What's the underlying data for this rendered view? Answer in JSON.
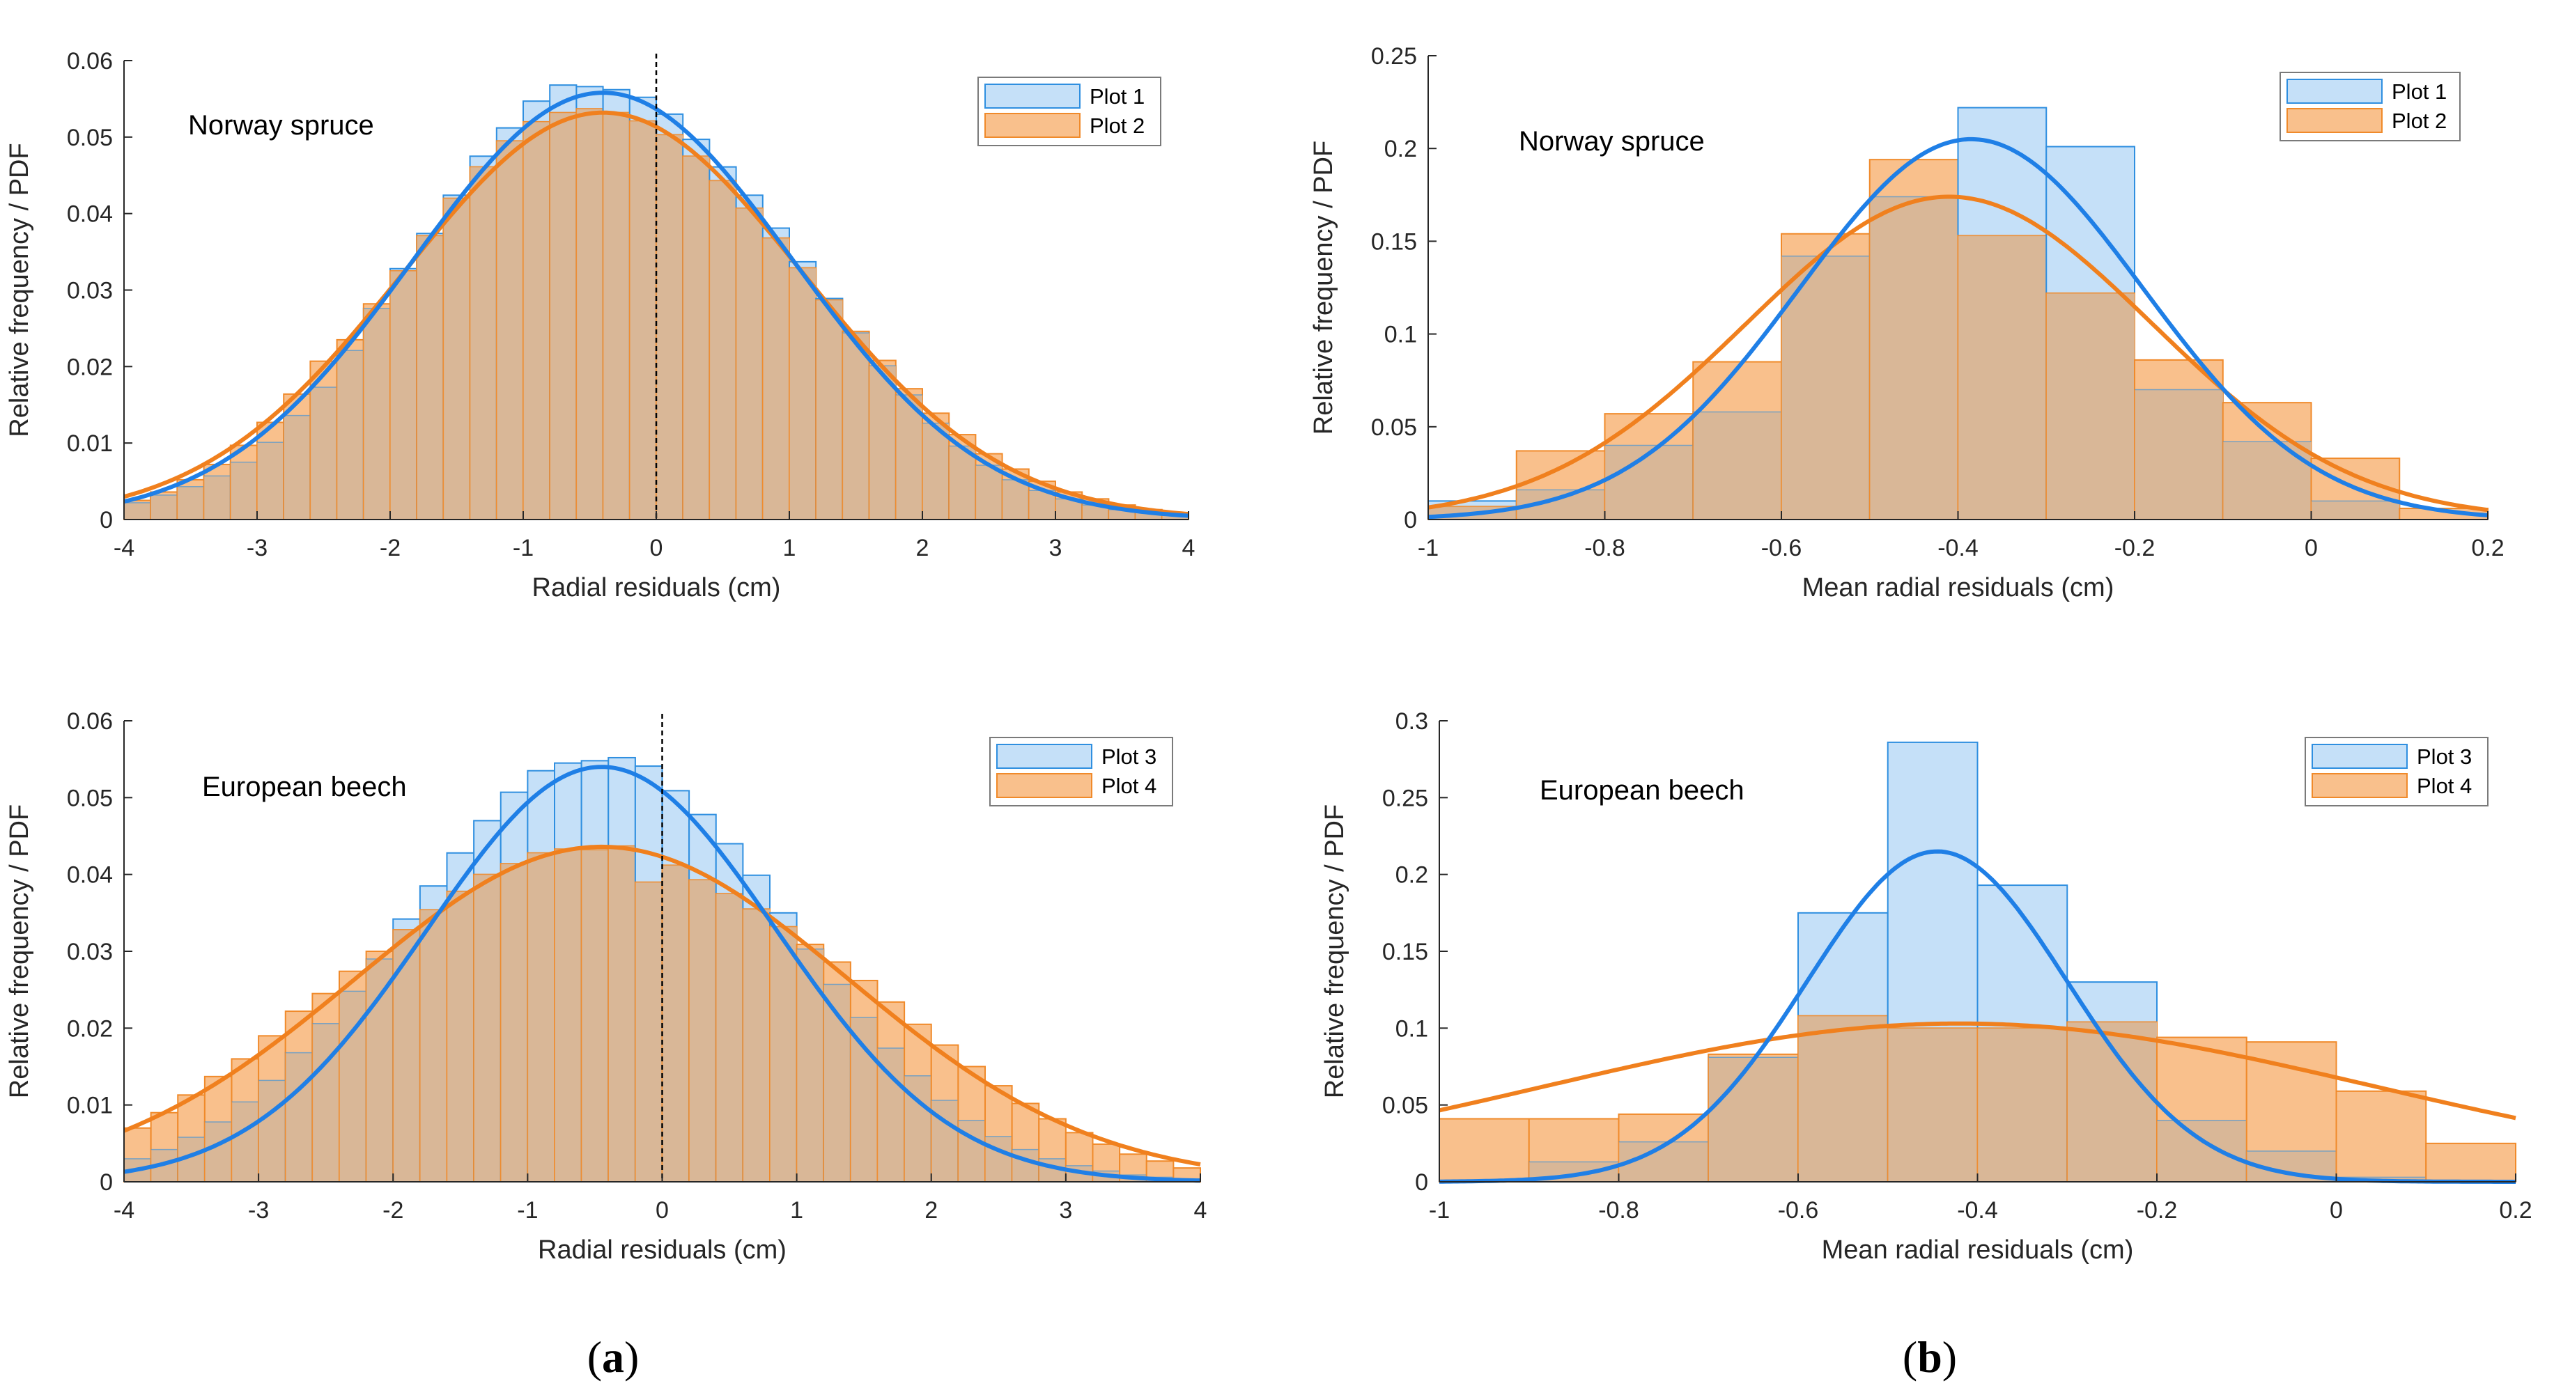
{
  "colors": {
    "blue_fill": "#c5e0f8",
    "blue_edge": "#2f8fe0",
    "blue_curve": "#1f7fe6",
    "orange_fill": "#f9c08c",
    "orange_edge": "#f08a2a",
    "orange_curve": "#f0801e",
    "overlap_fill": "#d9b797",
    "axis": "#262626"
  },
  "panel_labels": [
    {
      "open": "(",
      "letter": "a",
      "close": ")"
    },
    {
      "open": "(",
      "letter": "b",
      "close": ")"
    }
  ],
  "chart_data": [
    {
      "type": "bar",
      "annotation": "Norway spruce",
      "xlabel": "Radial residuals (cm)",
      "ylabel": "Relative frequency / PDF",
      "xlim": [
        -4,
        4
      ],
      "ylim": [
        0,
        0.06
      ],
      "xticks": [
        -4,
        -3,
        -2,
        -1,
        0,
        1,
        2,
        3,
        4
      ],
      "yticks": [
        0,
        0.01,
        0.02,
        0.03,
        0.04,
        0.05,
        0.06
      ],
      "ytick_labels": [
        "0",
        "0.01",
        "0.02",
        "0.03",
        "0.04",
        "0.05",
        "0.06"
      ],
      "zero_line": true,
      "legend_position": "top-right",
      "bin_width": 0.2,
      "bin_start": -4,
      "series": [
        {
          "name": "Plot 1",
          "color": "blue",
          "values": [
            0.0022,
            0.0032,
            0.0043,
            0.0057,
            0.0075,
            0.0101,
            0.0136,
            0.0173,
            0.0221,
            0.0276,
            0.0328,
            0.0374,
            0.0424,
            0.0475,
            0.0512,
            0.0547,
            0.0568,
            0.0566,
            0.0562,
            0.0552,
            0.053,
            0.0497,
            0.0461,
            0.0424,
            0.0381,
            0.0337,
            0.0289,
            0.0244,
            0.0201,
            0.0163,
            0.0126,
            0.0096,
            0.0071,
            0.0052,
            0.0038,
            0.0027,
            0.0019,
            0.0013,
            0.0009,
            0.0006
          ],
          "pdf": {
            "mu": -0.4,
            "sigma": 1.43,
            "peak": 0.0558
          }
        },
        {
          "name": "Plot 2",
          "color": "orange",
          "values": [
            0.0025,
            0.0036,
            0.0052,
            0.0072,
            0.0097,
            0.0127,
            0.0164,
            0.0207,
            0.0235,
            0.0282,
            0.0325,
            0.0371,
            0.042,
            0.0461,
            0.0495,
            0.052,
            0.0532,
            0.0537,
            0.0532,
            0.0521,
            0.0503,
            0.0475,
            0.0443,
            0.0407,
            0.0368,
            0.0329,
            0.0287,
            0.0246,
            0.0208,
            0.0171,
            0.0139,
            0.0111,
            0.0086,
            0.0066,
            0.005,
            0.0036,
            0.0027,
            0.0019,
            0.0013,
            0.0009
          ],
          "pdf": {
            "mu": -0.4,
            "sigma": 1.5,
            "peak": 0.0532
          }
        }
      ]
    },
    {
      "type": "bar",
      "annotation": "Norway spruce",
      "xlabel": "Mean radial residuals (cm)",
      "ylabel": "Relative frequency / PDF",
      "xlim": [
        -1,
        0.2
      ],
      "ylim": [
        0,
        0.25
      ],
      "xticks": [
        -1,
        -0.8,
        -0.6,
        -0.4,
        -0.2,
        0,
        0.2
      ],
      "xtick_labels": [
        "-1",
        "-0.8",
        "-0.6",
        "-0.4",
        "-0.2",
        "0",
        "0.2"
      ],
      "yticks": [
        0,
        0.05,
        0.1,
        0.15,
        0.2,
        0.25
      ],
      "ytick_labels": [
        "0",
        "0.05",
        "0.1",
        "0.15",
        "0.2",
        "0.25"
      ],
      "zero_line": false,
      "legend_position": "top-right",
      "bin_width": 0.1,
      "bin_start": -1,
      "series": [
        {
          "name": "Plot 1",
          "color": "blue",
          "values": [
            0.01,
            0.016,
            0.04,
            0.058,
            0.142,
            0.174,
            0.222,
            0.201,
            0.07,
            0.042,
            0.01,
            0.0
          ],
          "pdf": {
            "mu": -0.385,
            "sigma": 0.195,
            "peak": 0.205
          }
        },
        {
          "name": "Plot 2",
          "color": "orange",
          "values": [
            0.007,
            0.037,
            0.057,
            0.085,
            0.154,
            0.194,
            0.153,
            0.122,
            0.086,
            0.063,
            0.033,
            0.006
          ],
          "pdf": {
            "mu": -0.41,
            "sigma": 0.23,
            "peak": 0.174
          }
        }
      ]
    },
    {
      "type": "bar",
      "annotation": "European beech",
      "xlabel": "Radial residuals (cm)",
      "ylabel": "Relative frequency / PDF",
      "xlim": [
        -4,
        4
      ],
      "ylim": [
        0,
        0.06
      ],
      "xticks": [
        -4,
        -3,
        -2,
        -1,
        0,
        1,
        2,
        3,
        4
      ],
      "yticks": [
        0,
        0.01,
        0.02,
        0.03,
        0.04,
        0.05,
        0.06
      ],
      "ytick_labels": [
        "0",
        "0.01",
        "0.02",
        "0.03",
        "0.04",
        "0.05",
        "0.06"
      ],
      "zero_line": true,
      "legend_position": "top-right",
      "bin_width": 0.2,
      "bin_start": -4,
      "series": [
        {
          "name": "Plot 3",
          "color": "blue",
          "values": [
            0.003,
            0.0042,
            0.0058,
            0.0078,
            0.0104,
            0.0132,
            0.0168,
            0.0206,
            0.0248,
            0.029,
            0.0342,
            0.0385,
            0.0428,
            0.047,
            0.0507,
            0.0535,
            0.0545,
            0.0548,
            0.0552,
            0.0541,
            0.0509,
            0.0478,
            0.044,
            0.0399,
            0.035,
            0.0303,
            0.0257,
            0.0214,
            0.0174,
            0.0138,
            0.0106,
            0.008,
            0.0059,
            0.0042,
            0.003,
            0.0021,
            0.0014,
            0.0009,
            0.0006,
            0.0004
          ],
          "pdf": {
            "mu": -0.45,
            "sigma": 1.3,
            "peak": 0.054
          }
        },
        {
          "name": "Plot 4",
          "color": "orange",
          "values": [
            0.007,
            0.009,
            0.0113,
            0.0137,
            0.016,
            0.019,
            0.0222,
            0.0245,
            0.0274,
            0.03,
            0.0328,
            0.0354,
            0.0378,
            0.04,
            0.0414,
            0.0428,
            0.0433,
            0.0432,
            0.0437,
            0.039,
            0.0412,
            0.0393,
            0.0375,
            0.0355,
            0.0332,
            0.0309,
            0.0286,
            0.0262,
            0.0234,
            0.0205,
            0.0178,
            0.015,
            0.0125,
            0.0102,
            0.0082,
            0.0064,
            0.0049,
            0.0036,
            0.0027,
            0.0018
          ],
          "pdf": {
            "mu": -0.45,
            "sigma": 1.83,
            "peak": 0.0436
          }
        }
      ]
    },
    {
      "type": "bar",
      "annotation": "European beech",
      "xlabel": "Mean radial residuals (cm)",
      "ylabel": "Relative frequency / PDF",
      "xlim": [
        -1,
        0.2
      ],
      "ylim": [
        0,
        0.3
      ],
      "xticks": [
        -1,
        -0.8,
        -0.6,
        -0.4,
        -0.2,
        0,
        0.2
      ],
      "xtick_labels": [
        "-1",
        "-0.8",
        "-0.6",
        "-0.4",
        "-0.2",
        "0",
        "0.2"
      ],
      "yticks": [
        0,
        0.05,
        0.1,
        0.15,
        0.2,
        0.25,
        0.3
      ],
      "ytick_labels": [
        "0",
        "0.05",
        "0.1",
        "0.15",
        "0.2",
        "0.25",
        "0.3"
      ],
      "zero_line": false,
      "legend_position": "top-right",
      "bin_width": 0.1,
      "bin_start": -1,
      "series": [
        {
          "name": "Plot 3",
          "color": "blue",
          "values": [
            0.0,
            0.013,
            0.026,
            0.081,
            0.175,
            0.286,
            0.193,
            0.13,
            0.04,
            0.02,
            0.003,
            0.0
          ],
          "pdf": {
            "mu": -0.445,
            "sigma": 0.145,
            "peak": 0.215
          }
        },
        {
          "name": "Plot 4",
          "color": "orange",
          "values": [
            0.041,
            0.041,
            0.044,
            0.083,
            0.108,
            0.1,
            0.1,
            0.104,
            0.094,
            0.091,
            0.059,
            0.025
          ],
          "pdf": {
            "mu": -0.42,
            "sigma": 0.46,
            "peak": 0.103
          }
        }
      ]
    }
  ]
}
